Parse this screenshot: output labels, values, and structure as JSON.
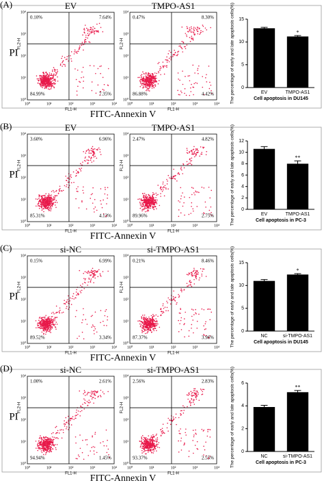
{
  "panels": [
    {
      "label": "(A)",
      "y_axis_label": "PI",
      "x_axis_label": "FITC-Annexin V",
      "plots": [
        {
          "title": "EV",
          "quadrants": [
            "0.10%",
            "7.64%",
            "84.99%",
            "7.35%"
          ]
        },
        {
          "title": "TMPO-AS1",
          "quadrants": [
            "0.47%",
            "8.30%",
            "86.88%",
            "4.42%"
          ]
        }
      ]
    },
    {
      "label": "(B)",
      "y_axis_label": "PI",
      "x_axis_label": "FITC-Annexin V",
      "plots": [
        {
          "title": "EV",
          "quadrants": [
            "3.60%",
            "6.96%",
            "85.31%",
            "4.13%"
          ]
        },
        {
          "title": "TMPO-AS1",
          "quadrants": [
            "2.47%",
            "4.82%",
            "89.96%",
            "2.75%"
          ]
        }
      ]
    },
    {
      "label": "(C)",
      "y_axis_label": "PI",
      "x_axis_label": "FITC-Annexin V",
      "plots": [
        {
          "title": "si-NC",
          "quadrants": [
            "0.15%",
            "6.99%",
            "89.52%",
            "3.34%"
          ]
        },
        {
          "title": "si-TMPO-AS1",
          "quadrants": [
            "0.21%",
            "8.46%",
            "87.37%",
            "3.96%"
          ]
        }
      ]
    },
    {
      "label": "(D)",
      "y_axis_label": "PI",
      "x_axis_label": "FITC-Annexin V",
      "plots": [
        {
          "title": "si-NC",
          "quadrants": [
            "1.00%",
            "2.61%",
            "94.94%",
            "1.45%"
          ]
        },
        {
          "title": "si-TMPO-AS1",
          "quadrants": [
            "2.56%",
            "2.83%",
            "93.37%",
            "2.55%"
          ]
        }
      ]
    }
  ],
  "flow_axis": {
    "x_label": "FL1-H",
    "y_label": "FL2-H",
    "ticks": [
      "10⁰",
      "10¹",
      "10²",
      "10³",
      "10⁴"
    ]
  },
  "chart_data": [
    {
      "type": "bar",
      "title": "Cell apoptosis in DU145",
      "y_label": "The percentage of early and late apoptosis cells(%)",
      "categories": [
        "EV",
        "TMPO-AS1"
      ],
      "values": [
        13,
        11.2
      ],
      "errors": [
        0.2,
        0.2
      ],
      "annotations": [
        null,
        "*"
      ],
      "color": "#000000",
      "ylim": [
        0,
        15
      ],
      "yticks": [
        0,
        5,
        10,
        15
      ]
    },
    {
      "type": "bar",
      "title": "Cell apoptosis in PC-3",
      "y_label": "The percentage of early and late apoptosis cells(%)",
      "categories": [
        "EV",
        "TMPO-AS1"
      ],
      "values": [
        10.6,
        8.0
      ],
      "errors": [
        0.4,
        0.5
      ],
      "annotations": [
        null,
        "**"
      ],
      "color": "#000000",
      "ylim": [
        0,
        12
      ],
      "yticks": [
        0,
        2,
        4,
        6,
        8,
        10,
        12
      ]
    },
    {
      "type": "bar",
      "title": "Cell apoptosis in DU145",
      "y_label": "The percentage of early and late apoptosis cells(%)",
      "categories": [
        "NC",
        "si-TMPO-AS1"
      ],
      "values": [
        11,
        12.4
      ],
      "errors": [
        0.3,
        0.2
      ],
      "annotations": [
        null,
        "*"
      ],
      "color": "#000000",
      "ylim": [
        0,
        15
      ],
      "yticks": [
        0,
        5,
        10,
        15
      ]
    },
    {
      "type": "bar",
      "title": "Cell apoptosis in PC-3",
      "y_label": "The percentage of early and late apoptosis cells(%)",
      "categories": [
        "NC",
        "si-TMPO-AS1"
      ],
      "values": [
        3.9,
        5.2
      ],
      "errors": [
        0.15,
        0.15
      ],
      "annotations": [
        null,
        "**"
      ],
      "color": "#000000",
      "ylim": [
        0,
        6
      ],
      "yticks": [
        0,
        2,
        4,
        6
      ]
    }
  ]
}
